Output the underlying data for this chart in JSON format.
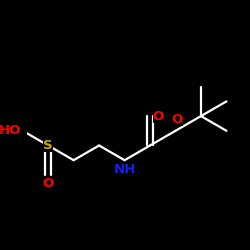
{
  "bg_color": "#000000",
  "line_color": "#ffffff",
  "atom_colors": {
    "O": "#ff0000",
    "N": "#1a1aff",
    "S": "#ccaa00"
  },
  "figsize": [
    2.5,
    2.5
  ],
  "dpi": 100,
  "bond_lw": 1.6,
  "font_size": 9.5
}
